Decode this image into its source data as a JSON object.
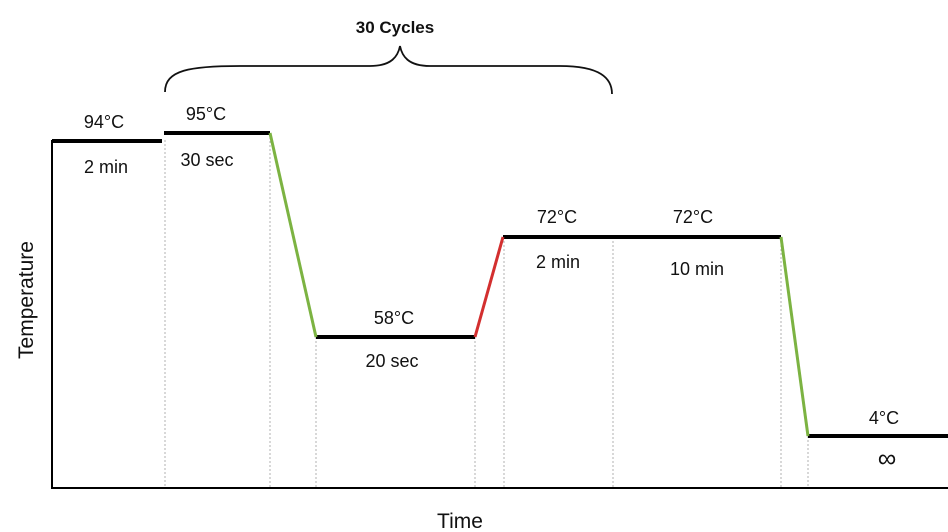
{
  "title": "30 Cycles",
  "xlabel": "Time",
  "ylabel": "Temperature",
  "steps": [
    {
      "id": "initial-denaturation",
      "temp": "94°C",
      "time": "2 min"
    },
    {
      "id": "denaturation",
      "temp": "95°C",
      "time": "30 sec"
    },
    {
      "id": "annealing",
      "temp": "58°C",
      "time": "20 sec"
    },
    {
      "id": "extension",
      "temp": "72°C",
      "time": "2 min"
    },
    {
      "id": "final-extension",
      "temp": "72°C",
      "time": "10 min"
    },
    {
      "id": "hold",
      "temp": "4°C",
      "time": "∞"
    }
  ],
  "colors": {
    "plateau": "#000000",
    "cooling_ramp": "#7cb342",
    "heating_ramp": "#d32f2f",
    "divider": "#b0b0b0"
  }
}
